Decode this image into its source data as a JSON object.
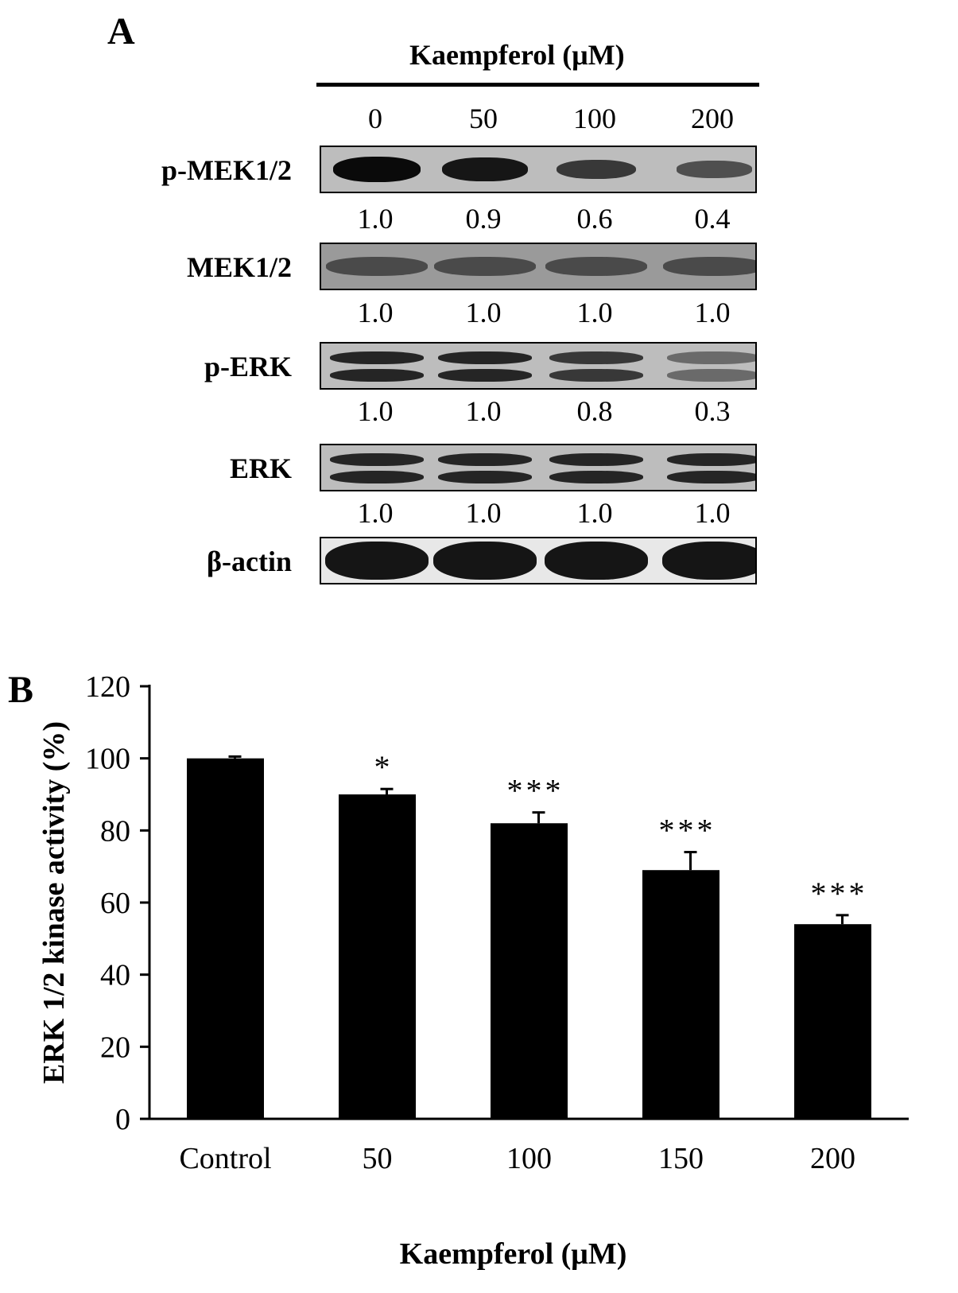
{
  "panel_a": {
    "letter": "A",
    "treatment_title": "Kaempferol  (μM)",
    "doses": [
      "0",
      "50",
      "100",
      "200"
    ],
    "rows": [
      {
        "label": "p-MEK1/2",
        "quant": [
          "1.0",
          "0.9",
          "0.6",
          "0.4"
        ],
        "intensity": [
          1.0,
          0.9,
          0.6,
          0.4
        ],
        "pattern": "single"
      },
      {
        "label": "MEK1/2",
        "quant": [
          "1.0",
          "1.0",
          "1.0",
          "1.0"
        ],
        "intensity": [
          1.0,
          1.0,
          1.0,
          1.0
        ],
        "pattern": "single-wide"
      },
      {
        "label": "p-ERK",
        "quant": [
          "1.0",
          "1.0",
          "0.8",
          "0.3"
        ],
        "intensity": [
          1.0,
          1.0,
          0.8,
          0.3
        ],
        "pattern": "double"
      },
      {
        "label": "ERK",
        "quant": [
          "1.0",
          "1.0",
          "1.0",
          "1.0"
        ],
        "intensity": [
          1.0,
          1.0,
          1.0,
          1.0
        ],
        "pattern": "double"
      },
      {
        "label": "β-actin",
        "quant": [],
        "intensity": [
          1.0,
          1.0,
          1.0,
          1.0
        ],
        "pattern": "dark"
      }
    ]
  },
  "panel_b": {
    "letter": "B"
  },
  "chart_data": {
    "type": "bar",
    "categories": [
      "Control",
      "50",
      "100",
      "150",
      "200"
    ],
    "values": [
      100,
      90,
      82,
      69,
      54
    ],
    "errors": [
      0.5,
      1.5,
      3,
      5,
      2.5
    ],
    "significance": [
      "",
      "*",
      "***",
      "***",
      "***"
    ],
    "xlabel": "Kaempferol (μM)",
    "ylabel": "ERK 1/2 kinase activity (%)",
    "ylim": [
      0,
      120
    ],
    "yticks": [
      0,
      20,
      40,
      60,
      80,
      100,
      120
    ],
    "bar_color": "#000000",
    "grid": false,
    "legend": "none"
  }
}
